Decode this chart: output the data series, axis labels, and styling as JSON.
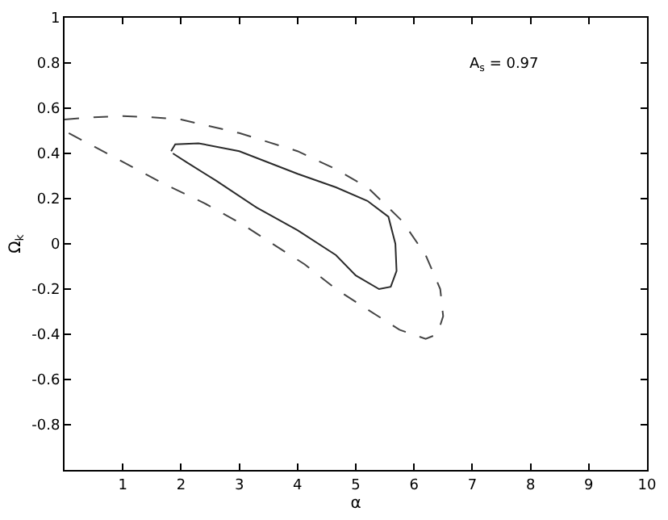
{
  "chart_data": {
    "type": "line",
    "xlabel": "α",
    "ylabel": "Ω$_{k}$",
    "annotations": [
      "A$_{s}$ = 0.97"
    ],
    "xlim": [
      0,
      10
    ],
    "xticks": [
      1,
      2,
      3,
      4,
      5,
      6,
      7,
      8,
      9,
      10
    ],
    "ylim": [
      -1,
      1
    ],
    "yticks": [
      -0.8,
      -0.6,
      -0.4,
      -0.2,
      0,
      0.2,
      0.4,
      0.6,
      0.8,
      1
    ],
    "marker": "none",
    "series": [
      {
        "color": "#2b2b2b",
        "line_style": "solid",
        "x": [
          1.83,
          1.9,
          2.3,
          3.0,
          3.5,
          4.0,
          4.66,
          5.2,
          5.56,
          5.68,
          5.7,
          5.6,
          5.4,
          5.0,
          4.66,
          4.0,
          3.3,
          2.6,
          2.1,
          1.86
        ],
        "values": [
          0.41,
          0.44,
          0.445,
          0.41,
          0.36,
          0.31,
          0.25,
          0.19,
          0.12,
          0.0,
          -0.12,
          -0.19,
          -0.2,
          -0.14,
          -0.05,
          0.06,
          0.16,
          0.28,
          0.36,
          0.4
        ]
      },
      {
        "color": "#444444",
        "line_style": "dashed",
        "x": [
          0,
          0.5,
          1,
          1.5,
          2,
          3,
          4,
          4.66,
          5.2,
          5.8,
          6.2,
          6.45,
          6.5,
          6.4,
          6.2,
          5.75,
          5.2,
          4.66,
          4.12,
          3.57,
          3.03,
          2.4,
          1.67,
          0.8,
          0
        ],
        "values": [
          0.55,
          0.56,
          0.565,
          0.56,
          0.55,
          0.49,
          0.41,
          0.33,
          0.25,
          0.1,
          -0.05,
          -0.2,
          -0.32,
          -0.4,
          -0.42,
          -0.38,
          -0.29,
          -0.2,
          -0.09,
          0.0,
          0.09,
          0.18,
          0.27,
          0.39,
          0.5
        ]
      }
    ]
  }
}
